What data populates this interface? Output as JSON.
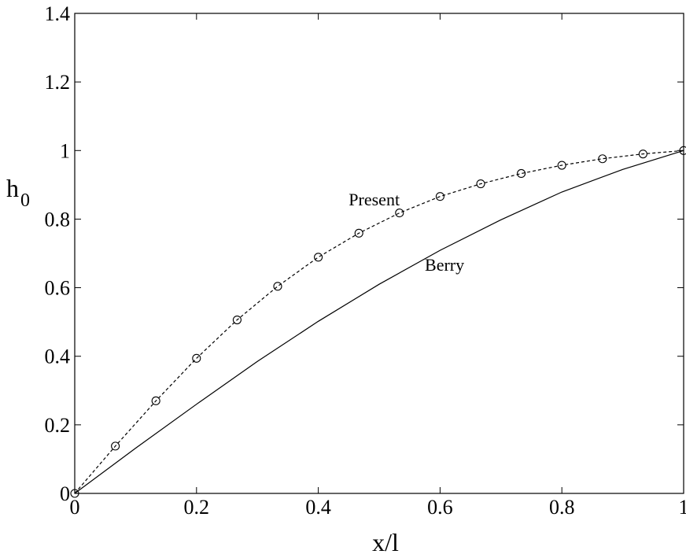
{
  "chart_data": {
    "type": "line",
    "title": "",
    "xlabel": "x/l",
    "ylabel": "h",
    "ylabel_sub": "0",
    "xlim": [
      0,
      1
    ],
    "ylim": [
      0,
      1.4
    ],
    "xticks": [
      "0",
      "0.2",
      "0.4",
      "0.6",
      "0.8",
      "1"
    ],
    "yticks": [
      "0",
      "0.2",
      "0.4",
      "0.6",
      "0.8",
      "1",
      "1.2",
      "1.4"
    ],
    "grid": false,
    "series": [
      {
        "name": "Present",
        "style": "dashed-circles",
        "color": "#000000",
        "x": [
          0,
          0.0667,
          0.1333,
          0.2,
          0.2667,
          0.3333,
          0.4,
          0.4667,
          0.5333,
          0.6,
          0.6667,
          0.7333,
          0.8,
          0.8667,
          0.9333,
          1.0
        ],
        "y": [
          0,
          0.138,
          0.27,
          0.394,
          0.506,
          0.604,
          0.689,
          0.759,
          0.818,
          0.866,
          0.903,
          0.933,
          0.957,
          0.976,
          0.99,
          1.0
        ]
      },
      {
        "name": "Berry",
        "style": "solid",
        "color": "#000000",
        "x": [
          0,
          0.1,
          0.2,
          0.3,
          0.4,
          0.5,
          0.6,
          0.7,
          0.8,
          0.9,
          1.0
        ],
        "y": [
          0,
          0.132,
          0.26,
          0.385,
          0.502,
          0.61,
          0.709,
          0.798,
          0.879,
          0.945,
          1.0
        ]
      }
    ],
    "annotations": [
      {
        "text": "Present",
        "x": 0.45,
        "y": 0.84
      },
      {
        "text": "Berry",
        "x": 0.575,
        "y": 0.65
      }
    ]
  }
}
